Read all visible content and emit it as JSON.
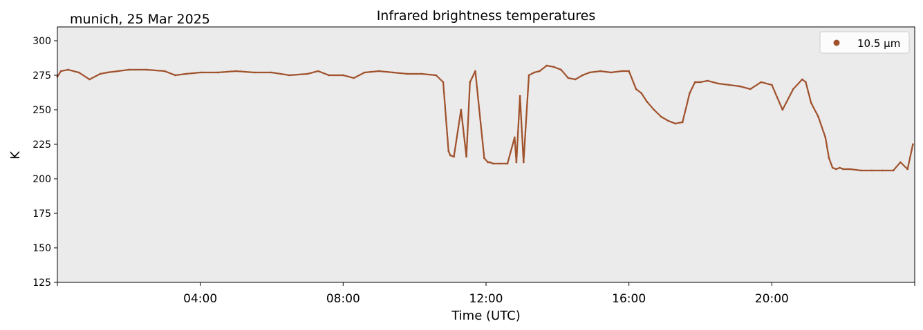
{
  "header": {
    "location_date": "munich, 25 Mar 2025"
  },
  "chart_data": {
    "type": "scatter",
    "title": "Infrared brightness temperatures",
    "xlabel": "Time (UTC)",
    "ylabel": "K",
    "xlim": [
      "2025-03-25 00:00",
      "2025-03-26 00:00"
    ],
    "ylim": [
      125,
      310
    ],
    "x_ticks": [
      "04:00",
      "08:00",
      "12:00",
      "16:00",
      "20:00"
    ],
    "y_ticks": [
      125,
      150,
      175,
      200,
      225,
      250,
      275,
      300
    ],
    "grid": false,
    "legend": "top-right",
    "series": [
      {
        "name": "10.5 µm",
        "color": "#a0522d",
        "x_hours": [
          0.0,
          0.1,
          0.3,
          0.6,
          0.9,
          1.2,
          1.4,
          1.7,
          2.0,
          2.5,
          3.0,
          3.3,
          3.6,
          4.0,
          4.5,
          5.0,
          5.5,
          6.0,
          6.5,
          7.0,
          7.3,
          7.6,
          8.0,
          8.3,
          8.6,
          9.0,
          9.4,
          9.8,
          10.2,
          10.6,
          10.8,
          10.95,
          11.0,
          11.1,
          11.3,
          11.45,
          11.55,
          11.7,
          11.85,
          11.95,
          12.05,
          12.1,
          12.2,
          12.4,
          12.6,
          12.8,
          12.85,
          12.95,
          13.05,
          13.2,
          13.35,
          13.5,
          13.7,
          13.9,
          14.1,
          14.3,
          14.5,
          14.7,
          14.9,
          15.2,
          15.5,
          15.8,
          16.0,
          16.2,
          16.35,
          16.5,
          16.7,
          16.9,
          17.1,
          17.3,
          17.5,
          17.7,
          17.85,
          18.0,
          18.2,
          18.5,
          18.8,
          19.1,
          19.4,
          19.7,
          20.0,
          20.3,
          20.6,
          20.85,
          20.95,
          21.1,
          21.3,
          21.5,
          21.6,
          21.7,
          21.8,
          21.9,
          22.0,
          22.2,
          22.5,
          22.8,
          23.1,
          23.4,
          23.6,
          23.8,
          23.95
        ],
        "values": [
          274,
          278,
          279,
          277,
          272,
          276,
          277,
          278,
          279,
          279,
          278,
          275,
          276,
          277,
          277,
          278,
          277,
          277,
          275,
          276,
          278,
          275,
          275,
          273,
          277,
          278,
          277,
          276,
          276,
          275,
          270,
          220,
          217,
          216,
          250,
          216,
          270,
          278,
          240,
          215,
          212,
          212,
          211,
          211,
          211,
          230,
          212,
          260,
          212,
          275,
          277,
          278,
          282,
          281,
          279,
          273,
          272,
          275,
          277,
          278,
          277,
          278,
          278,
          265,
          262,
          256,
          250,
          245,
          242,
          240,
          241,
          262,
          270,
          270,
          271,
          269,
          268,
          267,
          265,
          270,
          268,
          250,
          265,
          272,
          270,
          255,
          245,
          230,
          215,
          208,
          207,
          208,
          207,
          207,
          206,
          206,
          206,
          206,
          212,
          207,
          225
        ]
      }
    ]
  }
}
